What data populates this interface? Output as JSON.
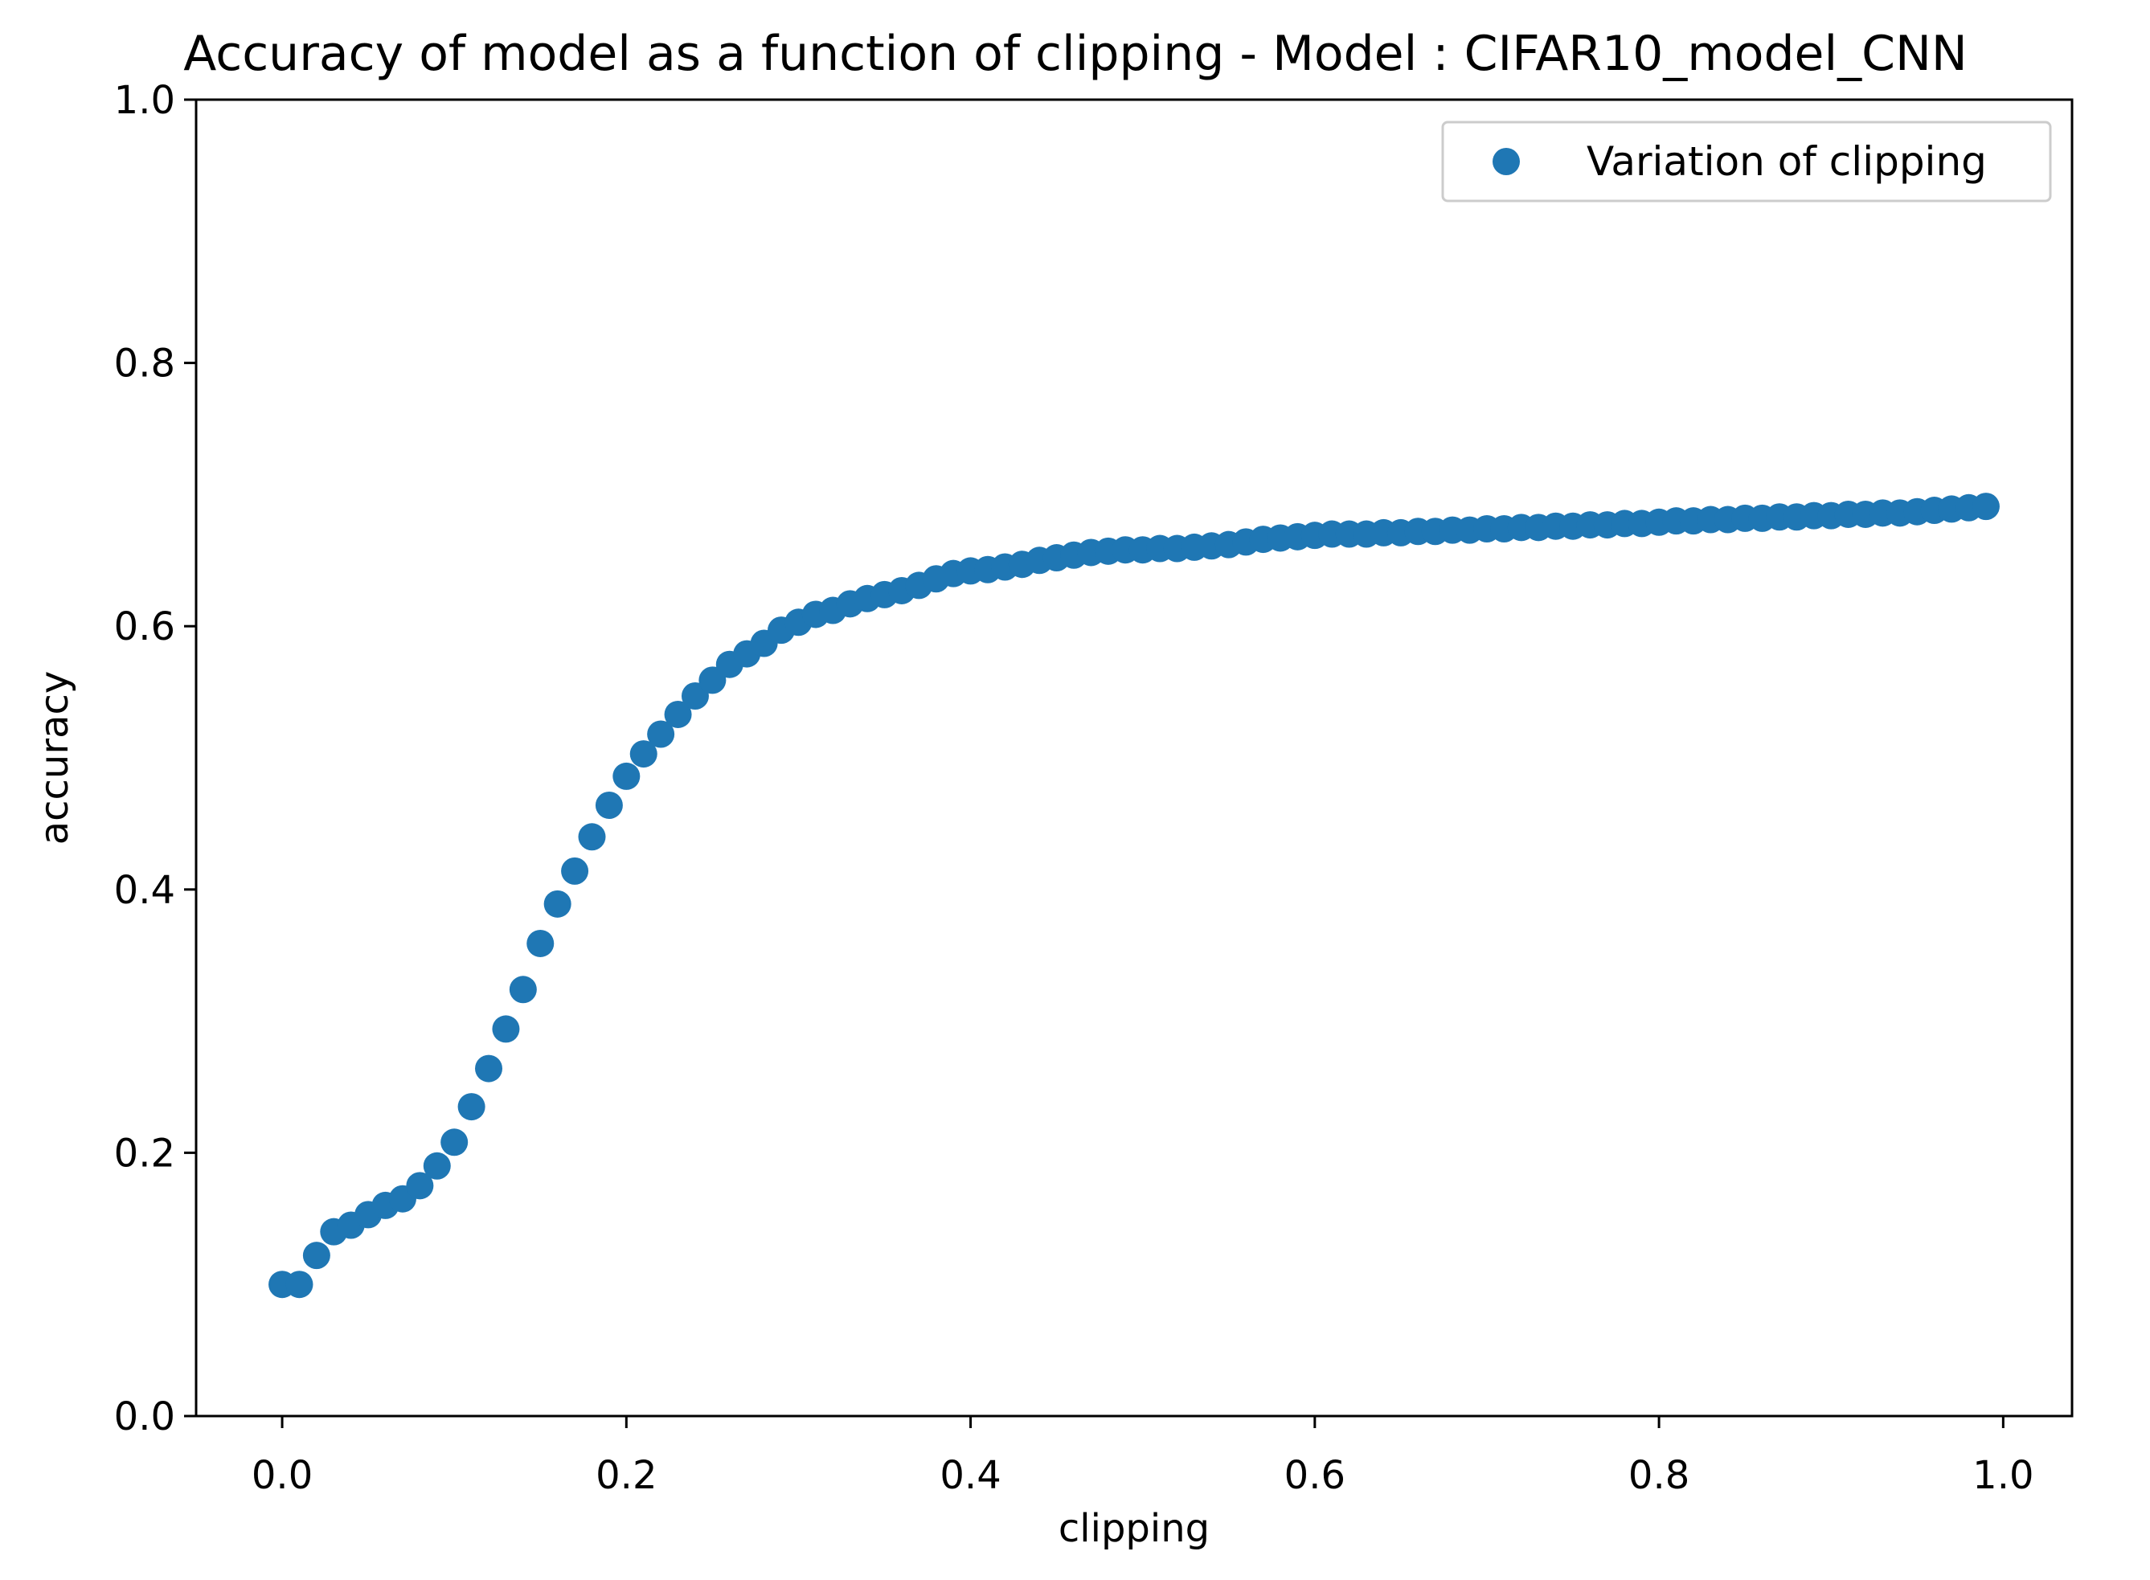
{
  "chart_data": {
    "type": "scatter",
    "title": "Accuracy of model as a function of clipping - Model : CIFAR10_model_CNN",
    "xlabel": "clipping",
    "ylabel": "accuracy",
    "xlim": [
      -0.05,
      1.04
    ],
    "ylim": [
      0.0,
      1.0
    ],
    "xticks": [
      "0.0",
      "0.2",
      "0.4",
      "0.6",
      "0.8",
      "1.0"
    ],
    "yticks": [
      "0.0",
      "0.2",
      "0.4",
      "0.6",
      "0.8",
      "1.0"
    ],
    "grid": false,
    "legend": "top-right",
    "series": [
      {
        "name": "Variation of clipping",
        "color": "#1f77b4",
        "x": [
          0.0,
          0.01,
          0.02,
          0.03,
          0.04,
          0.05,
          0.06,
          0.07,
          0.08,
          0.09,
          0.1,
          0.11,
          0.12,
          0.13,
          0.14,
          0.15,
          0.16,
          0.17,
          0.18,
          0.19,
          0.2,
          0.21,
          0.22,
          0.23,
          0.24,
          0.25,
          0.26,
          0.27,
          0.28,
          0.29,
          0.3,
          0.31,
          0.32,
          0.33,
          0.34,
          0.35,
          0.36,
          0.37,
          0.38,
          0.39,
          0.4,
          0.41,
          0.42,
          0.43,
          0.44,
          0.45,
          0.46,
          0.47,
          0.48,
          0.49,
          0.5,
          0.51,
          0.52,
          0.53,
          0.54,
          0.55,
          0.56,
          0.57,
          0.58,
          0.59,
          0.6,
          0.61,
          0.62,
          0.63,
          0.64,
          0.65,
          0.66,
          0.67,
          0.68,
          0.69,
          0.7,
          0.71,
          0.72,
          0.73,
          0.74,
          0.75,
          0.76,
          0.77,
          0.78,
          0.79,
          0.8,
          0.81,
          0.82,
          0.83,
          0.84,
          0.85,
          0.86,
          0.87,
          0.88,
          0.89,
          0.9,
          0.91,
          0.92,
          0.93,
          0.94,
          0.95,
          0.96,
          0.97,
          0.98,
          0.99
        ],
        "y": [
          0.1,
          0.1,
          0.122,
          0.14,
          0.145,
          0.153,
          0.16,
          0.165,
          0.175,
          0.19,
          0.208,
          0.235,
          0.264,
          0.294,
          0.324,
          0.359,
          0.389,
          0.414,
          0.44,
          0.464,
          0.486,
          0.503,
          0.518,
          0.533,
          0.547,
          0.559,
          0.571,
          0.579,
          0.587,
          0.597,
          0.603,
          0.609,
          0.612,
          0.617,
          0.621,
          0.624,
          0.627,
          0.631,
          0.636,
          0.64,
          0.642,
          0.643,
          0.645,
          0.647,
          0.65,
          0.652,
          0.654,
          0.656,
          0.657,
          0.658,
          0.658,
          0.659,
          0.659,
          0.66,
          0.661,
          0.662,
          0.664,
          0.666,
          0.667,
          0.668,
          0.669,
          0.67,
          0.67,
          0.67,
          0.671,
          0.671,
          0.672,
          0.672,
          0.673,
          0.673,
          0.674,
          0.674,
          0.675,
          0.675,
          0.676,
          0.676,
          0.677,
          0.677,
          0.678,
          0.678,
          0.679,
          0.68,
          0.68,
          0.681,
          0.681,
          0.682,
          0.682,
          0.683,
          0.683,
          0.684,
          0.684,
          0.685,
          0.685,
          0.686,
          0.686,
          0.687,
          0.688,
          0.689,
          0.69,
          0.691
        ]
      }
    ]
  }
}
